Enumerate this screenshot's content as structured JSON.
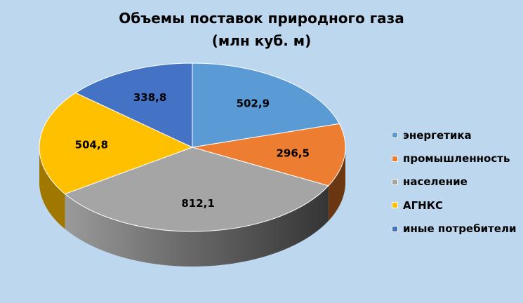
{
  "chart_data": {
    "type": "pie",
    "title_line1": "Объемы поставок природного газа",
    "title_line2": "(млн куб. м)",
    "legend_position": "right",
    "slices": [
      {
        "label": "энергетика",
        "value": 502.9,
        "value_label": "502,9",
        "color": "#5b9bd5",
        "dark": "#2e5f8d"
      },
      {
        "label": "промышленность",
        "value": 296.5,
        "value_label": "296,5",
        "color": "#ed7d31",
        "dark": "#6b3612"
      },
      {
        "label": "население",
        "value": 812.1,
        "value_label": "812,1",
        "color": "#a5a5a5",
        "dark": "#444444"
      },
      {
        "label": "АГНКС",
        "value": 504.8,
        "value_label": "504,8",
        "color": "#ffc000",
        "dark": "#a07800"
      },
      {
        "label": "иные потребители",
        "value": 338.8,
        "value_label": "338,8",
        "color": "#4472c4",
        "dark": "#22396a"
      }
    ]
  }
}
